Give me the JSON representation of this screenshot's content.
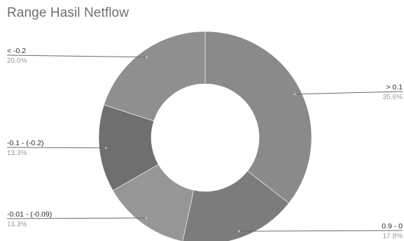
{
  "chart_data": {
    "type": "pie",
    "title": "Range Hasil Netflow",
    "donut": true,
    "slices": [
      {
        "label": "> 0.1",
        "pct_label": "35.6%",
        "value": 35.6,
        "color": "#8a8a8a"
      },
      {
        "label": "0.9 - 0",
        "pct_label": "17.8%",
        "value": 17.8,
        "color": "#7c7c7c"
      },
      {
        "label": "-0.01 - (-0.09)",
        "pct_label": "13.3%",
        "value": 13.3,
        "color": "#969696"
      },
      {
        "label": "-0.1 - (-0.2)",
        "pct_label": "13.3%",
        "value": 13.3,
        "color": "#6f6f6f"
      },
      {
        "label": "< -0.2",
        "pct_label": "20.0%",
        "value": 20.0,
        "color": "#8f8f8f"
      }
    ]
  }
}
